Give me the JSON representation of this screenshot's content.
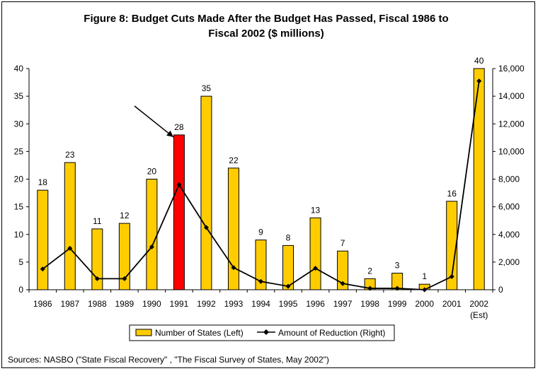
{
  "chart_data": {
    "type": "bar+line",
    "title_lines": [
      "Figure 8: Budget Cuts Made After the Budget Has Passed, Fiscal 1986 to",
      "Fiscal 2002 ($ millions)"
    ],
    "categories": [
      "1986",
      "1987",
      "1988",
      "1989",
      "1990",
      "1991",
      "1992",
      "1993",
      "1994",
      "1995",
      "1996",
      "1997",
      "1998",
      "1999",
      "2000",
      "2001",
      "2002"
    ],
    "category_sublabels": {
      "2002": "(Est)"
    },
    "series": [
      {
        "name": "Number of States (Left)",
        "kind": "bar",
        "axis": "left",
        "color": "#FFCC00",
        "highlight": {
          "category": "1991",
          "color": "#FF0000"
        },
        "values": [
          18,
          23,
          11,
          12,
          20,
          28,
          35,
          22,
          9,
          8,
          13,
          7,
          2,
          3,
          1,
          16,
          40
        ]
      },
      {
        "name": "Amount of Reduction (Right)",
        "kind": "line",
        "axis": "right",
        "color": "#000000",
        "values": [
          1500,
          3000,
          800,
          800,
          3100,
          7600,
          4500,
          1600,
          600,
          250,
          1550,
          450,
          100,
          100,
          0,
          950,
          15100
        ]
      }
    ],
    "left_axis": {
      "min": 0,
      "max": 40,
      "ticks": [
        "0",
        "5",
        "10",
        "15",
        "20",
        "25",
        "30",
        "35",
        "40"
      ]
    },
    "right_axis": {
      "min": 0,
      "max": 16000,
      "ticks": [
        "0",
        "2,000",
        "4,000",
        "6,000",
        "8,000",
        "10,000",
        "12,000",
        "14,000",
        "16,000"
      ]
    },
    "legend_position": "bottom",
    "annotation": "arrow pointing to 1991",
    "source": "Sources: NASBO (\"State Fiscal Recovery\" , \"The Fiscal Survey of States, May 2002\")"
  }
}
